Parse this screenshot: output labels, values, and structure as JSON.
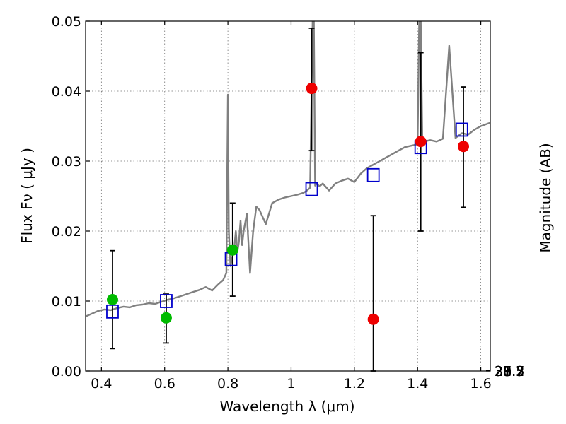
{
  "chart_data": {
    "type": "scatter",
    "xlabel": "Wavelength  λ (μm)",
    "ylabel": "Flux  Fν  ( μJy )",
    "y2label": "Magnitude (AB)",
    "xlim": [
      0.35,
      1.63
    ],
    "ylim": [
      0.0,
      0.05
    ],
    "x_ticks": [
      0.4,
      0.6,
      0.8,
      1.0,
      1.2,
      1.4,
      1.6
    ],
    "x_tick_labels": [
      "0.4",
      "0.6",
      "0.8",
      "1",
      "1.2",
      "1.4",
      "1.6"
    ],
    "y_ticks": [
      0.0,
      0.01,
      0.02,
      0.03,
      0.04,
      0.05
    ],
    "y_tick_labels": [
      "0.00",
      "0.01",
      "0.02",
      "0.03",
      "0.04",
      "0.05"
    ],
    "mag_ticks": [
      "27.2",
      "27.3",
      "27.5",
      "27.7",
      "28",
      "28.2",
      "28.5",
      "29",
      "29.5",
      "30",
      "31"
    ],
    "grid": true,
    "series": [
      {
        "kind": "spectrum",
        "color": "#808080",
        "x": [
          0.35,
          0.37,
          0.39,
          0.41,
          0.43,
          0.45,
          0.47,
          0.49,
          0.51,
          0.53,
          0.55,
          0.57,
          0.59,
          0.61,
          0.63,
          0.65,
          0.67,
          0.69,
          0.71,
          0.73,
          0.75,
          0.77,
          0.785,
          0.795,
          0.8,
          0.803,
          0.808,
          0.815,
          0.82,
          0.825,
          0.83,
          0.835,
          0.84,
          0.845,
          0.85,
          0.86,
          0.87,
          0.88,
          0.89,
          0.9,
          0.92,
          0.94,
          0.96,
          0.98,
          1.0,
          1.02,
          1.04,
          1.05,
          1.06,
          1.068,
          1.072,
          1.076,
          1.08,
          1.09,
          1.1,
          1.12,
          1.14,
          1.16,
          1.18,
          1.2,
          1.22,
          1.24,
          1.26,
          1.28,
          1.3,
          1.32,
          1.34,
          1.36,
          1.38,
          1.4,
          1.405,
          1.41,
          1.415,
          1.42,
          1.44,
          1.46,
          1.48,
          1.5,
          1.52,
          1.54,
          1.56,
          1.58,
          1.6,
          1.63
        ],
        "y": [
          0.0078,
          0.0082,
          0.0086,
          0.0088,
          0.0087,
          0.009,
          0.0092,
          0.0091,
          0.0094,
          0.0095,
          0.0097,
          0.0096,
          0.0099,
          0.0102,
          0.0104,
          0.0107,
          0.011,
          0.0113,
          0.0116,
          0.012,
          0.0115,
          0.0124,
          0.013,
          0.014,
          0.0395,
          0.02,
          0.015,
          0.0165,
          0.0175,
          0.02,
          0.017,
          0.0185,
          0.0215,
          0.018,
          0.02,
          0.0225,
          0.014,
          0.02,
          0.0235,
          0.023,
          0.021,
          0.024,
          0.0245,
          0.0248,
          0.025,
          0.0252,
          0.0255,
          0.0258,
          0.0262,
          0.05,
          0.05,
          0.0265,
          0.0268,
          0.0264,
          0.0268,
          0.0258,
          0.0268,
          0.0272,
          0.0275,
          0.027,
          0.0282,
          0.029,
          0.0295,
          0.03,
          0.0305,
          0.031,
          0.0315,
          0.032,
          0.0322,
          0.0324,
          0.05,
          0.05,
          0.033,
          0.0328,
          0.033,
          0.0328,
          0.0332,
          0.0465,
          0.0333,
          0.034,
          0.0338,
          0.0345,
          0.035,
          0.0355
        ]
      },
      {
        "kind": "model-squares",
        "marker": "open-square",
        "color": "#0000cc",
        "x": [
          0.435,
          0.605,
          0.81,
          1.065,
          1.26,
          1.41,
          1.54
        ],
        "y": [
          0.0085,
          0.01,
          0.016,
          0.026,
          0.028,
          0.032,
          0.0345
        ]
      },
      {
        "kind": "detections",
        "marker": "circle",
        "color": "#00bb00",
        "x": [
          0.435,
          0.605,
          0.815
        ],
        "y": [
          0.0102,
          0.0076,
          0.0173
        ],
        "err_low": [
          0.0032,
          0.004,
          0.0107
        ],
        "err_high": [
          0.0172,
          0.011,
          0.024
        ]
      },
      {
        "kind": "upper-limits",
        "marker": "circle",
        "color": "#ee0000",
        "x": [
          1.065,
          1.26,
          1.41,
          1.545
        ],
        "y": [
          0.0404,
          0.0074,
          0.0328,
          0.0321
        ],
        "err_low": [
          0.0315,
          0.0,
          0.02,
          0.0234
        ],
        "err_high": [
          0.049,
          0.0222,
          0.0455,
          0.0406
        ]
      }
    ]
  }
}
